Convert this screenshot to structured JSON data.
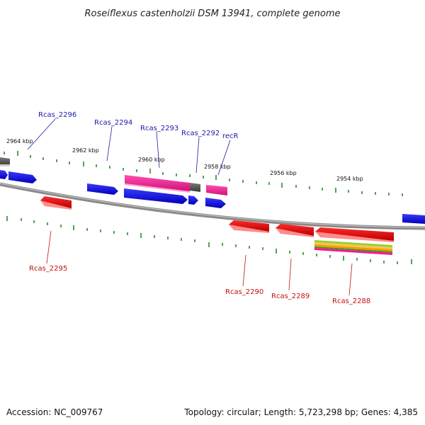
{
  "title": "Roseiflexus castenholzii DSM 13941, complete genome",
  "footer": {
    "accession": "Accession: NC_009767",
    "stats": "Topology: circular; Length: 5,723,298 bp; Genes: 4,385"
  },
  "colors": {
    "forward_gene": "#1010e0",
    "reverse_gene": "#e01010",
    "rrna": "#ff1493",
    "other_feature": "#606060",
    "backbone": "#8a8a8a",
    "tick": "#2a8a2a",
    "label_forward": "#1a1aa8",
    "label_reverse": "#c41010"
  },
  "scale_labels": [
    "2964 kbp",
    "2962 kbp",
    "2960 kbp",
    "2958 kbp",
    "2956 kbp",
    "2954 kbp"
  ],
  "forward_labels": [
    "Rcas_2296",
    "Rcas_2294",
    "Rcas_2293",
    "Rcas_2292",
    "recR"
  ],
  "reverse_labels": [
    "Rcas_2295",
    "Rcas_2290",
    "Rcas_2289",
    "Rcas_2288"
  ]
}
